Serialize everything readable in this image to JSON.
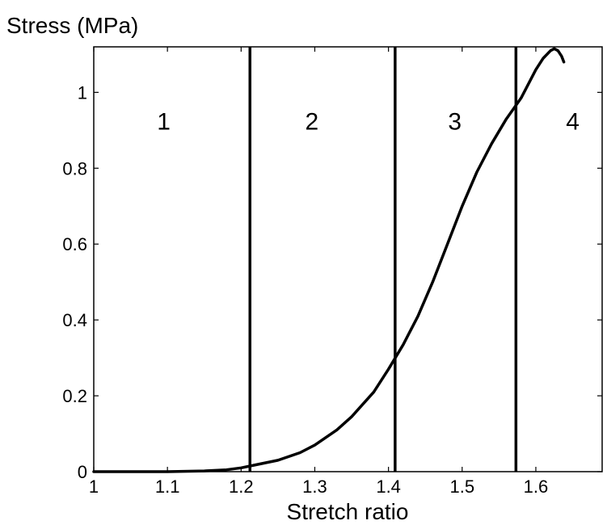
{
  "chart_data": {
    "type": "line",
    "ylabel": "Stress (MPa)",
    "xlabel": "Stretch ratio",
    "xlim": [
      1.0,
      1.69
    ],
    "ylim": [
      0,
      1.12
    ],
    "xticks": [
      "1",
      "1.1",
      "1.2",
      "1.3",
      "1.4",
      "1.5",
      "1.6"
    ],
    "xtick_values": [
      1.0,
      1.1,
      1.2,
      1.3,
      1.4,
      1.5,
      1.6
    ],
    "yticks": [
      "0",
      "0.2",
      "0.4",
      "0.6",
      "0.8",
      "1"
    ],
    "ytick_values": [
      0,
      0.2,
      0.4,
      0.6,
      0.8,
      1.0
    ],
    "grid": false,
    "legend": "none",
    "line_color": "#000000",
    "series": [
      {
        "x": [
          1.0,
          1.05,
          1.1,
          1.15,
          1.18,
          1.2,
          1.22,
          1.25,
          1.28,
          1.3,
          1.33,
          1.35,
          1.38,
          1.4,
          1.42,
          1.44,
          1.46,
          1.48,
          1.5,
          1.52,
          1.54,
          1.56,
          1.58,
          1.6,
          1.61,
          1.62,
          1.625,
          1.63,
          1.635,
          1.638
        ],
        "y": [
          0.0,
          0.0,
          0.0,
          0.002,
          0.005,
          0.01,
          0.018,
          0.03,
          0.05,
          0.07,
          0.11,
          0.145,
          0.21,
          0.27,
          0.335,
          0.41,
          0.5,
          0.6,
          0.7,
          0.79,
          0.865,
          0.93,
          0.985,
          1.06,
          1.09,
          1.11,
          1.115,
          1.11,
          1.095,
          1.08
        ]
      }
    ],
    "vertical_lines": [
      1.212,
      1.409,
      1.573
    ],
    "region_labels": [
      {
        "text": "1",
        "x": 1.095,
        "y": 0.925
      },
      {
        "text": "2",
        "x": 1.296,
        "y": 0.925
      },
      {
        "text": "3",
        "x": 1.49,
        "y": 0.925
      },
      {
        "text": "4",
        "x": 1.65,
        "y": 0.925
      }
    ]
  }
}
